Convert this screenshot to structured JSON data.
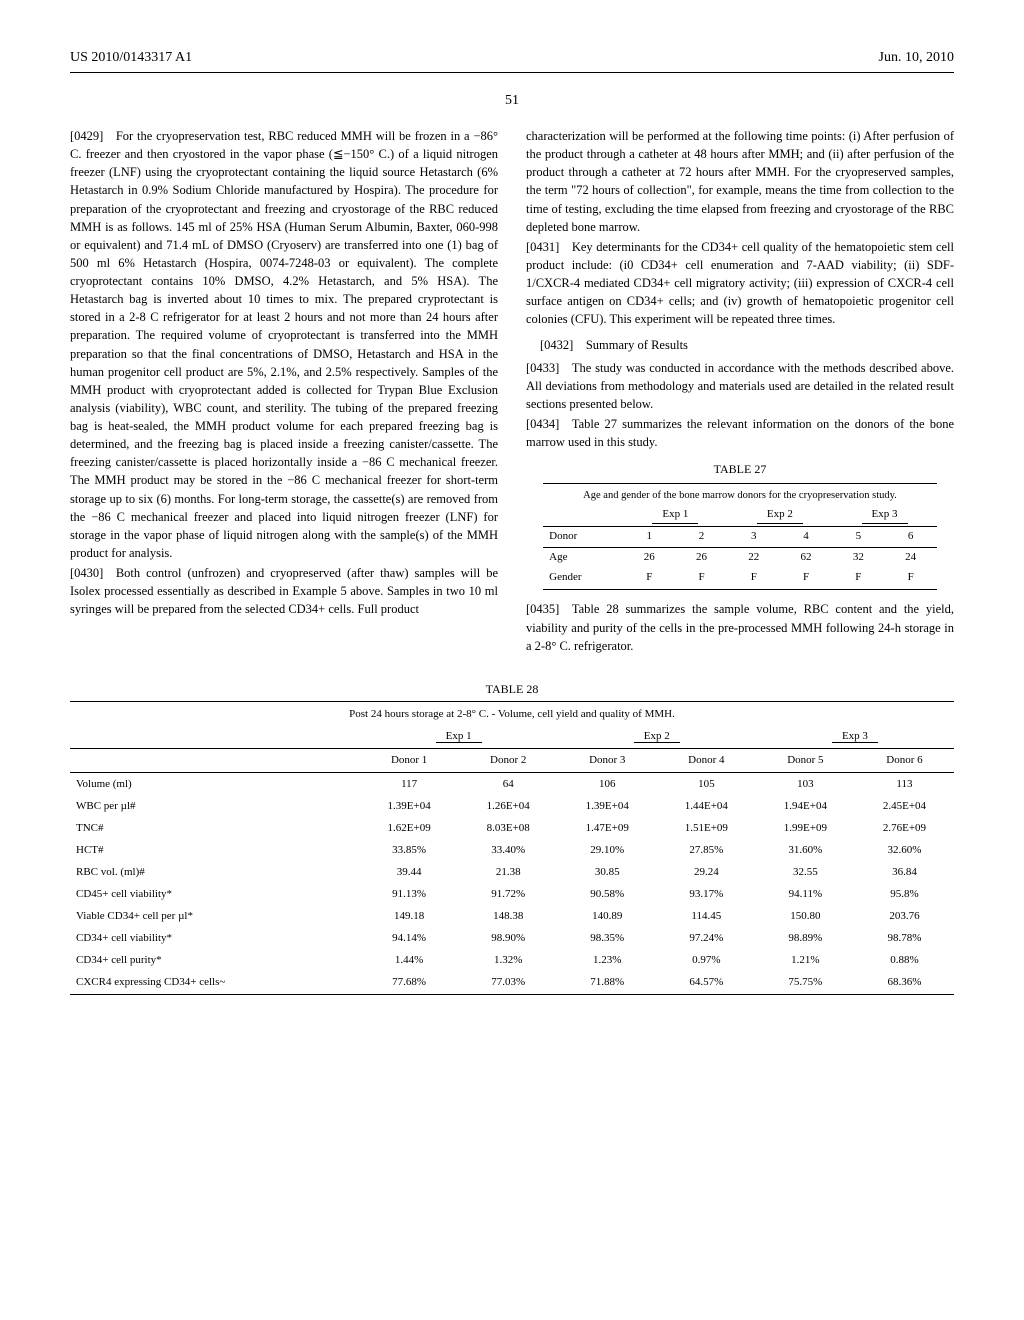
{
  "header": {
    "left": "US 2010/0143317 A1",
    "right": "Jun. 10, 2010"
  },
  "page_number": "51",
  "left_col": {
    "p0429": "[0429] For the cryopreservation test, RBC reduced MMH will be frozen in a −86° C. freezer and then cryostored in the vapor phase (≦−150° C.) of a liquid nitrogen freezer (LNF) using the cryoprotectant containing the liquid source Hetastarch (6% Hetastarch in 0.9% Sodium Chloride manufactured by Hospira). The procedure for preparation of the cryoprotectant and freezing and cryostorage of the RBC reduced MMH is as follows. 145 ml of 25% HSA (Human Serum Albumin, Baxter, 060-998 or equivalent) and 71.4 mL of DMSO (Cryoserv) are transferred into one (1) bag of 500 ml 6% Hetastarch (Hospira, 0074-7248-03 or equivalent). The complete cryoprotectant contains 10% DMSO, 4.2% Hetastarch, and 5% HSA). The Hetastarch bag is inverted about 10 times to mix. The prepared cryprotectant is stored in a 2-8 C refrigerator for at least 2 hours and not more than 24 hours after preparation. The required volume of cryoprotectant is transferred into the MMH preparation so that the final concentrations of DMSO, Hetastarch and HSA in the human progenitor cell product are 5%, 2.1%, and 2.5% respectively. Samples of the MMH product with cryoprotectant added is collected for Trypan Blue Exclusion analysis (viability), WBC count, and sterility. The tubing of the prepared freezing bag is heat-sealed, the MMH product volume for each prepared freezing bag is determined, and the freezing bag is placed inside a freezing canister/cassette. The freezing canister/cassette is placed horizontally inside a −86 C mechanical freezer. The MMH product may be stored in the −86 C mechanical freezer for short-term storage up to six (6) months. For long-term storage, the cassette(s) are removed from the −86 C mechanical freezer and placed into liquid nitrogen freezer (LNF) for storage in the vapor phase of liquid nitrogen along with the sample(s) of the MMH product for analysis.",
    "p0430": "[0430] Both control (unfrozen) and cryopreserved (after thaw) samples will be Isolex processed essentially as described in Example 5 above. Samples in two 10 ml syringes will be prepared from the selected CD34+ cells. Full product"
  },
  "right_col": {
    "p_cont": "characterization will be performed at the following time points: (i) After perfusion of the product through a catheter at 48 hours after MMH; and (ii) after perfusion of the product through a catheter at 72 hours after MMH. For the cryopreserved samples, the term \"72 hours of collection\", for example, means the time from collection to the time of testing, excluding the time elapsed from freezing and cryostorage of the RBC depleted bone marrow.",
    "p0431": "[0431] Key determinants for the CD34+ cell quality of the hematopoietic stem cell product include: (i0 CD34+ cell enumeration and 7-AAD viability; (ii) SDF-1/CXCR-4 mediated CD34+ cell migratory activity; (iii) expression of CXCR-4 cell surface antigen on CD34+ cells; and (iv) growth of hematopoietic progenitor cell colonies (CFU). This experiment will be repeated three times.",
    "p0432": "[0432] Summary of Results",
    "p0433": "[0433] The study was conducted in accordance with the methods described above. All deviations from methodology and materials used are detailed in the related result sections presented below.",
    "p0434": "[0434] Table 27 summarizes the relevant information on the donors of the bone marrow used in this study.",
    "p0435": "[0435] Table 28 summarizes the sample volume, RBC content and the yield, viability and purity of the cells in the pre-processed MMH following 24-h storage in a 2-8° C. refrigerator."
  },
  "table27": {
    "caption": "TABLE 27",
    "title": "Age and gender of the bone marrow donors for the cryopreservation study.",
    "exp_labels": [
      "Exp 1",
      "Exp 2",
      "Exp 3"
    ],
    "donor_label": "Donor",
    "donors": [
      "1",
      "2",
      "3",
      "4",
      "5",
      "6"
    ],
    "rows": [
      {
        "label": "Age",
        "values": [
          "26",
          "26",
          "22",
          "62",
          "32",
          "24"
        ]
      },
      {
        "label": "Gender",
        "values": [
          "F",
          "F",
          "F",
          "F",
          "F",
          "F"
        ]
      }
    ]
  },
  "table28": {
    "caption": "TABLE 28",
    "title": "Post 24 hours storage at 2-8° C. - Volume, cell yield and quality of MMH.",
    "exp_labels": [
      "Exp 1",
      "Exp 2",
      "Exp 3"
    ],
    "donor_labels": [
      "Donor 1",
      "Donor 2",
      "Donor 3",
      "Donor 4",
      "Donor 5",
      "Donor 6"
    ],
    "rows": [
      {
        "label": "Volume (ml)",
        "values": [
          "117",
          "64",
          "106",
          "105",
          "103",
          "113"
        ]
      },
      {
        "label": "WBC per µl#",
        "values": [
          "1.39E+04",
          "1.26E+04",
          "1.39E+04",
          "1.44E+04",
          "1.94E+04",
          "2.45E+04"
        ]
      },
      {
        "label": "TNC#",
        "values": [
          "1.62E+09",
          "8.03E+08",
          "1.47E+09",
          "1.51E+09",
          "1.99E+09",
          "2.76E+09"
        ]
      },
      {
        "label": "HCT#",
        "values": [
          "33.85%",
          "33.40%",
          "29.10%",
          "27.85%",
          "31.60%",
          "32.60%"
        ]
      },
      {
        "label": "RBC vol. (ml)#",
        "values": [
          "39.44",
          "21.38",
          "30.85",
          "29.24",
          "32.55",
          "36.84"
        ]
      },
      {
        "label": "CD45+ cell viability*",
        "values": [
          "91.13%",
          "91.72%",
          "90.58%",
          "93.17%",
          "94.11%",
          "95.8%"
        ]
      },
      {
        "label": "Viable CD34+ cell per µl*",
        "values": [
          "149.18",
          "148.38",
          "140.89",
          "114.45",
          "150.80",
          "203.76"
        ]
      },
      {
        "label": "CD34+ cell viability*",
        "values": [
          "94.14%",
          "98.90%",
          "98.35%",
          "97.24%",
          "98.89%",
          "98.78%"
        ]
      },
      {
        "label": "CD34+ cell purity*",
        "values": [
          "1.44%",
          "1.32%",
          "1.23%",
          "0.97%",
          "1.21%",
          "0.88%"
        ]
      },
      {
        "label": "CXCR4 expressing CD34+ cells~",
        "values": [
          "77.68%",
          "77.03%",
          "71.88%",
          "64.57%",
          "75.75%",
          "68.36%"
        ]
      }
    ]
  }
}
